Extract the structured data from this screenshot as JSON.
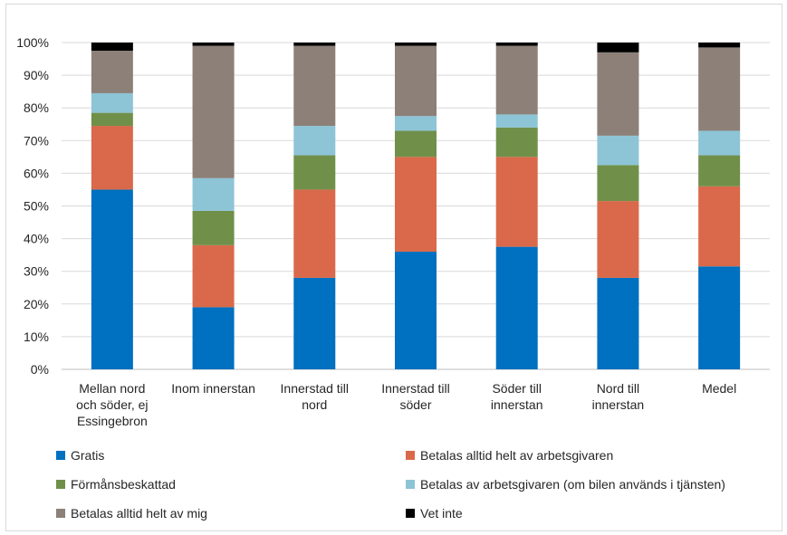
{
  "chart_data": {
    "type": "bar",
    "stacked": true,
    "categories": [
      [
        "Mellan nord",
        "och söder, ej",
        "Essingebron"
      ],
      [
        "Inom innerstan"
      ],
      [
        "Innerstad till",
        "nord"
      ],
      [
        "Innerstad till",
        "söder"
      ],
      [
        "Söder till",
        "innerstan"
      ],
      [
        "Nord till",
        "innerstan"
      ],
      [
        "Medel"
      ]
    ],
    "ylim": [
      0,
      100
    ],
    "yticks": [
      "0%",
      "10%",
      "20%",
      "30%",
      "40%",
      "50%",
      "60%",
      "70%",
      "80%",
      "90%",
      "100%"
    ],
    "grid": true,
    "legend_position": "bottom",
    "series": [
      {
        "name": "Gratis",
        "color": "#0070C0",
        "values": [
          55,
          19,
          28,
          36,
          37.5,
          28,
          31.5
        ]
      },
      {
        "name": "Betalas alltid helt av arbetsgivaren",
        "color": "#D9694A",
        "values": [
          19.5,
          19,
          27,
          29,
          27.5,
          23.5,
          24.5
        ]
      },
      {
        "name": "Förmånsbeskattad",
        "color": "#70904A",
        "values": [
          4,
          10.5,
          10.5,
          8,
          9,
          11,
          9.5
        ]
      },
      {
        "name": "Betalas av arbetsgivaren (om bilen används i tjänsten)",
        "color": "#8DC4D6",
        "values": [
          6,
          10,
          9,
          4.5,
          4,
          9,
          7.5
        ]
      },
      {
        "name": "Betalas alltid helt av mig",
        "color": "#8C8078",
        "values": [
          13,
          40.5,
          24.5,
          21.5,
          21,
          25.5,
          25.5
        ]
      },
      {
        "name": "Vet inte",
        "color": "#000000",
        "values": [
          2.5,
          1,
          1,
          1,
          1,
          3,
          1.5
        ]
      }
    ]
  }
}
